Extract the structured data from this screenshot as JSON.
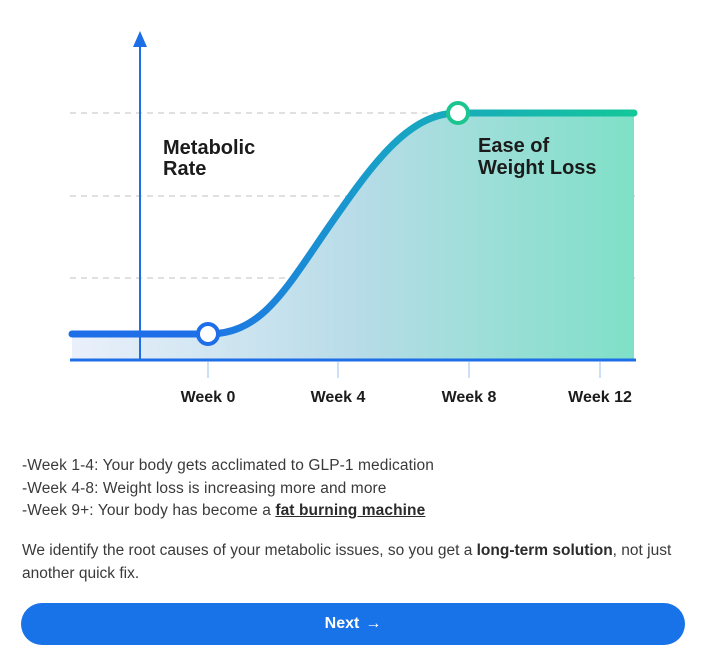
{
  "chart_data": {
    "type": "area",
    "categories": [
      "Week 0",
      "Week 4",
      "Week 8",
      "Week 12"
    ],
    "ylabel_lines": [
      "Metabolic",
      "Rate"
    ],
    "annotation_lines": [
      "Ease of",
      "Weight Loss"
    ],
    "grid": "dashed horizontal",
    "colors": {
      "axis": "#1e6ee8",
      "curve_start": "#1e6ee8",
      "curve_mid": "#18a0c8",
      "curve_end": "#14c79a",
      "fill_start": "#eaf0fb",
      "fill_end": "#7fe0c7",
      "marker_start": "#1e6ee8",
      "marker_end": "#1cc48f",
      "grid": "#c2c2c2"
    }
  },
  "bullets": [
    {
      "text": "-Week 1-4: Your body gets acclimated to GLP-1 medication",
      "highlight": ""
    },
    {
      "text": "-Week 4-8: Weight loss is increasing more and more",
      "highlight": ""
    },
    {
      "text": "-Week 9+: Your body has become a ",
      "highlight": "fat burning machine"
    }
  ],
  "description": {
    "part1": "We identify the root causes of your metabolic issues, so you get a ",
    "bold": "long-term solution",
    "part2": ", not just another quick fix."
  },
  "next_button": {
    "label": "Next",
    "arrow": "→",
    "color": "#1872e8"
  }
}
